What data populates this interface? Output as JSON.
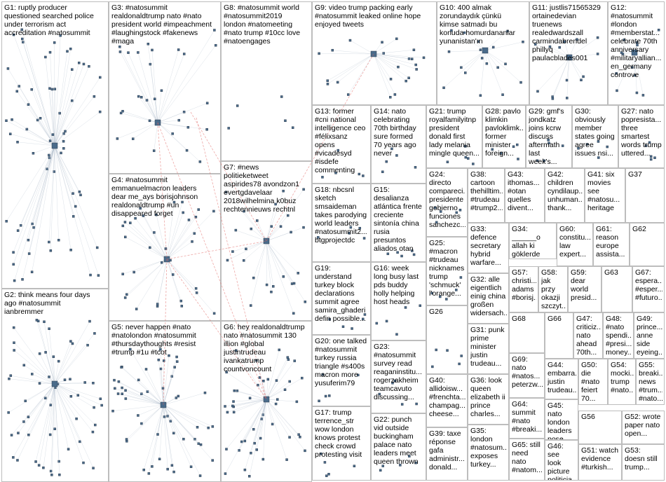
{
  "groups": [
    {
      "id": "G1",
      "label": "G1: ruptly producer\nquestioned searched police\nunder terrorism act\naccreditation #natosummit"
    },
    {
      "id": "G2",
      "label": "G2: think means four days\nago #natosummit\nianbremmer"
    },
    {
      "id": "G3",
      "label": "G3: #natosummit\nrealdonaldtrump nato #nato\npresident world #impeachment\n#laughingstock #fakenews\n#maga"
    },
    {
      "id": "G4",
      "label": "G4: #natosummit\nemmanuelmacron leaders\ndear me_ays borisjohnson\nrealdonaldtrump #un\ndisappeared forget"
    },
    {
      "id": "G5",
      "label": "G5: never happen #nato\n#natolondon #natosummit\n#thursdaythoughts #resist\n#trump #1u #tcot"
    },
    {
      "id": "G6",
      "label": "G6: hey realdonaldtrump\nnato #natosummit 130\nillion #global\njustintrudeau\nivankatrump\ncountvoncount"
    },
    {
      "id": "G7",
      "label": "G7: #news\npolitieketweet\naspirides78 avondzon1\nevertgdavelaar\n2018wilhelmina k0buz\nrechtennieuws rechtnl"
    },
    {
      "id": "G8",
      "label": "G8: #natosummit world\n#natosummit2019\nlondon #natomeeting\n#nato trump #10cc love\n#natoengages"
    },
    {
      "id": "G9",
      "label": "G9: video trump packing early\n#natosummit leaked online hope\nenjoyed tweets"
    },
    {
      "id": "G10",
      "label": "G10: 400 almak\nzorundaydık çünkü\nkimse satmadı bu\nkonuda homurdananlar\nyunanistan'ın"
    },
    {
      "id": "G11",
      "label": "G11: justlis71565329\nortainedevian\ntruenews\nrealedwardszall\ncarmindabrendel\nphillyq\npaulacblades001"
    },
    {
      "id": "G12",
      "label": "G12:\n#natosummit\n#london\n#memberstat...\ncelebrate 70th\nanniversary\n#militaryallian...\nen_germany\ncontrove"
    },
    {
      "id": "G13",
      "label": "G13: former\n#cni national\nintelligence ceo\n#félixsanz\nopens\n#vicadesyd\n#isdefe\ncommenting"
    },
    {
      "id": "G14",
      "label": "G14: nato\ncelebrating\n70th birthday\nsure formed\n70 years ago\nnever"
    },
    {
      "id": "G15",
      "label": "G15:\ndesalianza\natlántica frente\ncreciente\nsintonía china\nrusia\npresuntos\naliados otan"
    },
    {
      "id": "G16",
      "label": "G16: week\nlong busy last\npds buddy\nholly helping\nhost heads"
    },
    {
      "id": "G17",
      "label": "G17: trump\nterrence_str\nwow london\nknows protest\ncheck crowd\nprotesting visit"
    },
    {
      "id": "G18",
      "label": "G18: nbcsnl\nsketch\nsmsaideman\ntakes parodying\nworld leaders\n#natosummit2...\nbtgprojectdc"
    },
    {
      "id": "G19",
      "label": "G19:\nunderstand\nturkey block\ndeclarations\nsummit agree\nsamira_ghaderi\ndefin possible..."
    },
    {
      "id": "G20",
      "label": "G20: one talked\n#natosummit\nturkey russia\ntriangle #s400s\nmacron more\nyusuferim79"
    },
    {
      "id": "G21",
      "label": "G21: trump\nroyalfamilyitnp\npresident\ndonald first\nlady melania\nmingle queen..."
    },
    {
      "id": "G22",
      "label": "G22: punch\nvid outside\nbuckingham\npalace nato\nleaders meet\nqueen thrown"
    },
    {
      "id": "G23",
      "label": "G23:\n#natosummit\nsurvey read\nreaganinstitu...\nrogerzakheim\nteamcavuto\ndiscussing..."
    },
    {
      "id": "G24",
      "label": "G24:\ndirecto\ncompareci...\npresidente\ngobierno\nfunciones\nsanchezc..."
    },
    {
      "id": "G25",
      "label": "G25:\n#macron\n#trudeau\nnicknames\ntrump\n'schmuck'\nl'orange..."
    },
    {
      "id": "G26",
      "label": "G26"
    },
    {
      "id": "G27",
      "label": "G27: nato\npopresista...\nthree\nsmartest\nwords trump\nuttered..."
    },
    {
      "id": "G28",
      "label": "G28: pavlo\nklimkin\npavloklimk...\nformer\nminister\nforeign..."
    },
    {
      "id": "G29",
      "label": "G29: gmf's\njondkatz\njoins kcrw\ndiscuss\naftermath\nlast week's..."
    },
    {
      "id": "G30",
      "label": "G30:\nobviously\nmember\nstates going\nagree\nissues nsi..."
    },
    {
      "id": "G31",
      "label": "G31: punk\nprime\nminister\njustin\ntrudeau..."
    },
    {
      "id": "G32",
      "label": "G32: alle\neigentlich\neinig china\ngroßen\nwidersach..."
    },
    {
      "id": "G33",
      "label": "G33:\ndefence\nsecretary\nhybrid\nwarfare..."
    },
    {
      "id": "G34",
      "label": "G34: ______o\nallah ki\ngöklerde ve..."
    },
    {
      "id": "G35",
      "label": "G35:\nlondon\n#natosum...\nexposes\nturkey..."
    },
    {
      "id": "G36",
      "label": "G36: look\nqueen\nelizabeth ii\nprince\ncharles..."
    },
    {
      "id": "G37",
      "label": "G37"
    },
    {
      "id": "G38",
      "label": "G38:\ncartoon\nthehilltim...\n#trudeau\n#trump2..."
    },
    {
      "id": "G39",
      "label": "G39: taxe\nréponse\ngafa\nadministr...\ndonald..."
    },
    {
      "id": "G40",
      "label": "G40:\nallidoisw...\n#frenchta...\nchampag...\ncheese..."
    },
    {
      "id": "G41",
      "label": "G41: six\nmovies\nsee\n#natosu...\nheritage"
    },
    {
      "id": "G42",
      "label": "G42:\nchildren\ncyndilaup...\nunhuman...\nthank..."
    },
    {
      "id": "G43",
      "label": "G43:\nithomas...\n#otan\nquelles\ndivent..."
    },
    {
      "id": "G44",
      "label": "G44:\nembarra...\njustin\ntrudeau..."
    },
    {
      "id": "G45",
      "label": "G45: nato\nlondon\nleaders\npose..."
    },
    {
      "id": "G46",
      "label": "G46: see\nlook\npicture\npoliticia..."
    },
    {
      "id": "G47",
      "label": "G47:\ncriticiz...\nnato\nahead\n70th..."
    },
    {
      "id": "G48",
      "label": "G48:\n#nato\nspendi...\n#presi...\nmoney..."
    },
    {
      "id": "G49",
      "label": "G49:\nprince...\nanne\nside\neyeing..."
    },
    {
      "id": "G50",
      "label": "G50:\ndie\n#nato\nfeiert\n70..."
    },
    {
      "id": "G51",
      "label": "G51: watch\nevidence\n#turkish..."
    },
    {
      "id": "G52",
      "label": "G52: wrote\npaper nato\nopen..."
    },
    {
      "id": "G53",
      "label": "G53:\ndoesn still\ntrump..."
    },
    {
      "id": "G54",
      "label": "G54:\nmocki...\ntrump\n#nato..."
    },
    {
      "id": "G55",
      "label": "G55:\nbreaki...\nnews\n#trum...\n#nato..."
    },
    {
      "id": "G56",
      "label": "G56"
    },
    {
      "id": "G57",
      "label": "G57:\nchristi...\nadams\n#borisj..."
    },
    {
      "id": "G58",
      "label": "G58: jak\nprzy\nokazji\nszczyt..."
    },
    {
      "id": "G59",
      "label": "G59:\ndear\nworld\npresid..."
    },
    {
      "id": "G60",
      "label": "G60:\nconstitu...\nlaw\nexpert..."
    },
    {
      "id": "G61",
      "label": "G61:\nreason\neurope\nassista..."
    },
    {
      "id": "G62",
      "label": "G62"
    },
    {
      "id": "G63",
      "label": "G63"
    },
    {
      "id": "G64",
      "label": "G64:\nsummit\n#nato\n#breaki..."
    },
    {
      "id": "G65",
      "label": "G65: still\nneed\nnato\n#natom..."
    },
    {
      "id": "G66",
      "label": "G66"
    },
    {
      "id": "G67",
      "label": "G67:\nespera...\n#esper...\n#futuro..."
    },
    {
      "id": "G68",
      "label": "G68"
    },
    {
      "id": "G69",
      "label": "G69:\nnato\n#natos...\npeterzw..."
    }
  ],
  "colors": {
    "border": "#bdbdbd",
    "edge": "#a9b7c9",
    "cross_edge": "#e0605c",
    "node_fill": "#4a6b8a",
    "node_border": "#2f3e50"
  }
}
